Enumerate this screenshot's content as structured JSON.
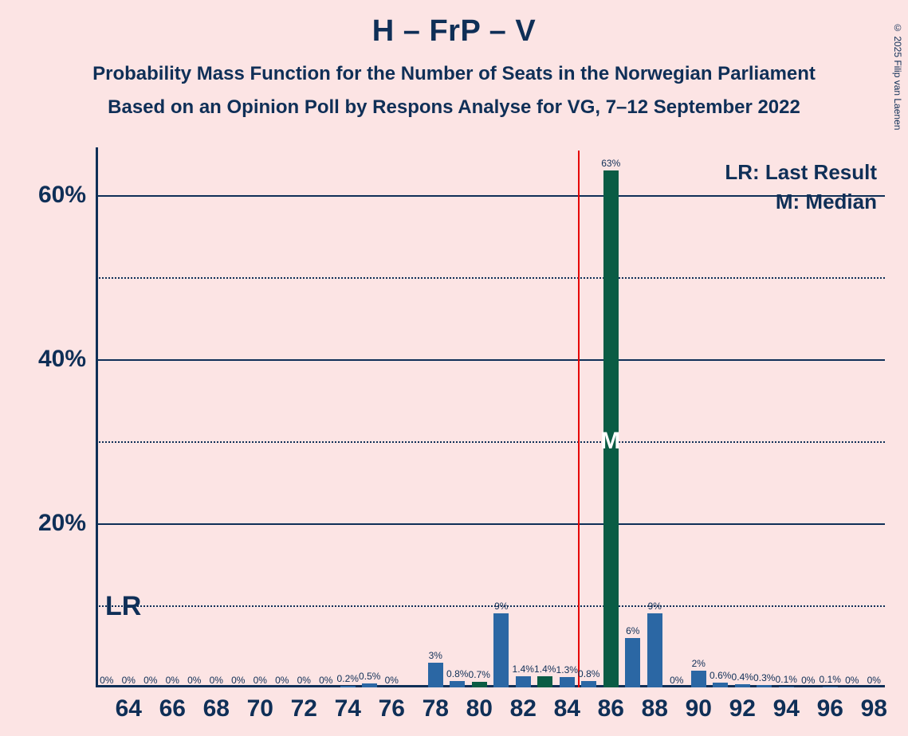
{
  "title": "H – FrP – V",
  "subtitle1": "Probability Mass Function for the Number of Seats in the Norwegian Parliament",
  "subtitle2": "Based on an Opinion Poll by Respons Analyse for VG, 7–12 September 2022",
  "copyright": "© 2025 Filip van Laenen",
  "legend_lr": "LR: Last Result",
  "legend_m": "M: Median",
  "lr_text": "LR",
  "m_text": "M",
  "chart": {
    "type": "bar",
    "background_color": "#fce4e4",
    "text_color": "#0f2f57",
    "bar_color_default": "#2b67a4",
    "bar_color_highlight": "#0a5c44",
    "lr_line_color": "#e60000",
    "x_min": 63,
    "x_max": 98,
    "y_min": 0,
    "y_max": 65,
    "y_ticks": [
      20,
      40,
      60
    ],
    "y_minor_ticks": [
      10,
      30,
      50
    ],
    "x_tick_labels": [
      64,
      66,
      68,
      70,
      72,
      74,
      76,
      78,
      80,
      82,
      84,
      86,
      88,
      90,
      92,
      94,
      96,
      98
    ],
    "lr_position": 85,
    "median_position": 86,
    "bar_width_ratio": 0.68,
    "bars": [
      {
        "x": 63,
        "v": 0,
        "label": "0%"
      },
      {
        "x": 64,
        "v": 0,
        "label": "0%"
      },
      {
        "x": 65,
        "v": 0,
        "label": "0%"
      },
      {
        "x": 66,
        "v": 0,
        "label": "0%"
      },
      {
        "x": 67,
        "v": 0,
        "label": "0%"
      },
      {
        "x": 68,
        "v": 0,
        "label": "0%"
      },
      {
        "x": 69,
        "v": 0,
        "label": "0%"
      },
      {
        "x": 70,
        "v": 0,
        "label": "0%"
      },
      {
        "x": 71,
        "v": 0,
        "label": "0%"
      },
      {
        "x": 72,
        "v": 0,
        "label": "0%"
      },
      {
        "x": 73,
        "v": 0,
        "label": "0%"
      },
      {
        "x": 74,
        "v": 0.2,
        "label": "0.2%"
      },
      {
        "x": 75,
        "v": 0.5,
        "label": "0.5%"
      },
      {
        "x": 76,
        "v": 0,
        "label": "0%"
      },
      {
        "x": 78,
        "v": 3,
        "label": "3%"
      },
      {
        "x": 79,
        "v": 0.8,
        "label": "0.8%"
      },
      {
        "x": 80,
        "v": 0.7,
        "label": "0.7%",
        "highlight": true
      },
      {
        "x": 81,
        "v": 9,
        "label": "9%"
      },
      {
        "x": 82,
        "v": 1.4,
        "label": "1.4%"
      },
      {
        "x": 83,
        "v": 1.4,
        "label": "1.4%",
        "highlight": true
      },
      {
        "x": 84,
        "v": 1.3,
        "label": "1.3%"
      },
      {
        "x": 85,
        "v": 0.8,
        "label": "0.8%"
      },
      {
        "x": 86,
        "v": 63,
        "label": "63%",
        "highlight": true
      },
      {
        "x": 87,
        "v": 6,
        "label": "6%"
      },
      {
        "x": 88,
        "v": 9,
        "label": "9%"
      },
      {
        "x": 89,
        "v": 0,
        "label": "0%"
      },
      {
        "x": 90,
        "v": 2,
        "label": "2%"
      },
      {
        "x": 91,
        "v": 0.6,
        "label": "0.6%"
      },
      {
        "x": 92,
        "v": 0.4,
        "label": "0.4%"
      },
      {
        "x": 93,
        "v": 0.3,
        "label": "0.3%"
      },
      {
        "x": 94,
        "v": 0.1,
        "label": "0.1%"
      },
      {
        "x": 95,
        "v": 0,
        "label": "0%"
      },
      {
        "x": 96,
        "v": 0.1,
        "label": "0.1%"
      },
      {
        "x": 97,
        "v": 0,
        "label": "0%"
      },
      {
        "x": 98,
        "v": 0,
        "label": "0%"
      }
    ]
  }
}
